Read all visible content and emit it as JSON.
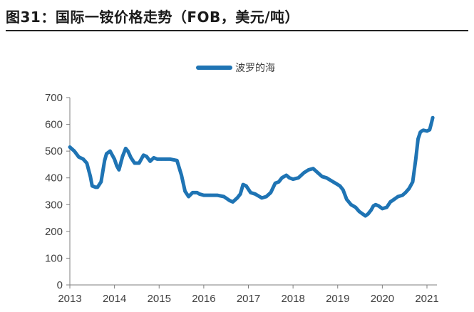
{
  "figure": {
    "title": "图31：国际一铵价格走势（FOB，美元/吨）"
  },
  "chart_data": {
    "type": "line",
    "title": "",
    "xlabel": "",
    "ylabel": "",
    "x_ticks": [
      "2013",
      "2014",
      "2015",
      "2016",
      "2017",
      "2018",
      "2019",
      "2020",
      "2021"
    ],
    "y_ticks": [
      0,
      100,
      200,
      300,
      400,
      500,
      600,
      700
    ],
    "ylim": [
      0,
      700
    ],
    "xlim": [
      2013,
      2021.2
    ],
    "grid": false,
    "legend_position": "top-center",
    "series": [
      {
        "name": "波罗的海",
        "color": "#1f74b4",
        "x": [
          2013.0,
          2013.1,
          2013.2,
          2013.3,
          2013.38,
          2013.46,
          2013.5,
          2013.58,
          2013.62,
          2013.7,
          2013.78,
          2013.82,
          2013.9,
          2014.0,
          2014.05,
          2014.1,
          2014.18,
          2014.25,
          2014.3,
          2014.37,
          2014.45,
          2014.55,
          2014.65,
          2014.72,
          2014.8,
          2014.88,
          2014.96,
          2015.05,
          2015.15,
          2015.25,
          2015.4,
          2015.5,
          2015.58,
          2015.66,
          2015.75,
          2015.8,
          2015.85,
          2015.9,
          2016.0,
          2016.15,
          2016.3,
          2016.45,
          2016.58,
          2016.65,
          2016.75,
          2016.82,
          2016.88,
          2016.95,
          2017.05,
          2017.15,
          2017.25,
          2017.3,
          2017.4,
          2017.5,
          2017.6,
          2017.68,
          2017.75,
          2017.85,
          2017.92,
          2018.0,
          2018.12,
          2018.25,
          2018.35,
          2018.45,
          2018.55,
          2018.65,
          2018.75,
          2018.85,
          2018.95,
          2019.05,
          2019.12,
          2019.2,
          2019.3,
          2019.4,
          2019.48,
          2019.56,
          2019.62,
          2019.68,
          2019.75,
          2019.8,
          2019.85,
          2019.92,
          2020.0,
          2020.1,
          2020.18,
          2020.25,
          2020.35,
          2020.45,
          2020.52,
          2020.6,
          2020.68,
          2020.75,
          2020.8,
          2020.85,
          2020.88,
          2020.92,
          2021.0,
          2021.06,
          2021.1,
          2021.13
        ],
        "values": [
          515,
          500,
          478,
          470,
          455,
          405,
          370,
          365,
          365,
          385,
          465,
          490,
          500,
          470,
          445,
          430,
          480,
          510,
          500,
          475,
          455,
          455,
          485,
          480,
          462,
          475,
          470,
          470,
          470,
          470,
          465,
          410,
          350,
          330,
          345,
          345,
          345,
          340,
          335,
          335,
          335,
          330,
          315,
          310,
          325,
          340,
          375,
          370,
          345,
          340,
          330,
          325,
          330,
          345,
          380,
          385,
          400,
          410,
          400,
          395,
          400,
          420,
          430,
          435,
          420,
          405,
          400,
          390,
          380,
          370,
          355,
          320,
          300,
          290,
          275,
          265,
          258,
          265,
          280,
          295,
          300,
          295,
          285,
          290,
          310,
          318,
          330,
          335,
          345,
          360,
          385,
          470,
          545,
          570,
          575,
          578,
          575,
          580,
          605,
          625
        ]
      }
    ]
  }
}
